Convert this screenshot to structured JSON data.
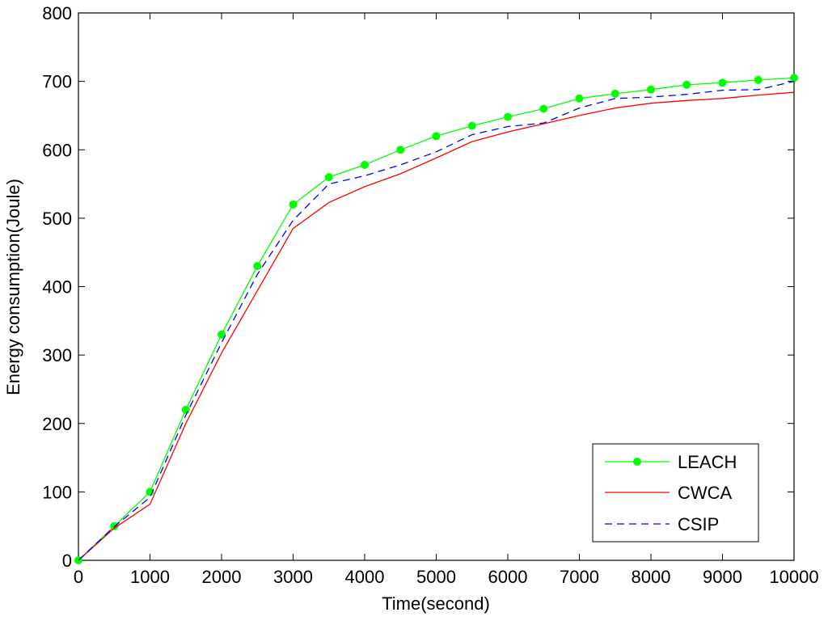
{
  "chart_data": {
    "type": "line",
    "title": "",
    "xlabel": "Time(second)",
    "ylabel": "Energy consumption(Joule)",
    "xlim": [
      0,
      10000
    ],
    "ylim": [
      0,
      800
    ],
    "xticks": [
      0,
      1000,
      2000,
      3000,
      4000,
      5000,
      6000,
      7000,
      8000,
      9000,
      10000
    ],
    "yticks": [
      0,
      100,
      200,
      300,
      400,
      500,
      600,
      700,
      800
    ],
    "grid": false,
    "legend_position": "bottom-right",
    "series": [
      {
        "name": "LEACH",
        "color": "#00ff00",
        "line_style": "solid",
        "marker": "circle",
        "x": [
          0,
          500,
          1000,
          1500,
          2000,
          2500,
          3000,
          3500,
          4000,
          4500,
          5000,
          5500,
          6000,
          6500,
          7000,
          7500,
          8000,
          8500,
          9000,
          9500,
          10000
        ],
        "y": [
          0,
          50,
          100,
          220,
          330,
          430,
          520,
          560,
          578,
          600,
          620,
          635,
          648,
          660,
          675,
          682,
          688,
          695,
          698,
          702,
          705
        ]
      },
      {
        "name": "CWCA",
        "color": "#ff0000",
        "line_style": "solid",
        "marker": "none",
        "x": [
          0,
          500,
          1000,
          1500,
          2000,
          2500,
          3000,
          3500,
          4000,
          4500,
          5000,
          5500,
          6000,
          6500,
          7000,
          7500,
          8000,
          8500,
          9000,
          9500,
          10000
        ],
        "y": [
          0,
          47,
          82,
          200,
          303,
          394,
          485,
          523,
          546,
          565,
          588,
          612,
          626,
          638,
          650,
          661,
          668,
          672,
          675,
          680,
          684
        ]
      },
      {
        "name": "CSIP",
        "color": "#0000ff",
        "line_style": "dashed",
        "marker": "none",
        "x": [
          0,
          500,
          1000,
          1500,
          2000,
          2500,
          3000,
          3500,
          4000,
          4500,
          5000,
          5500,
          6000,
          6500,
          7000,
          7500,
          8000,
          8500,
          9000,
          9500,
          10000
        ],
        "y": [
          0,
          49,
          92,
          212,
          318,
          418,
          497,
          550,
          562,
          578,
          597,
          622,
          634,
          639,
          661,
          675,
          677,
          681,
          687,
          688,
          700
        ]
      }
    ]
  }
}
